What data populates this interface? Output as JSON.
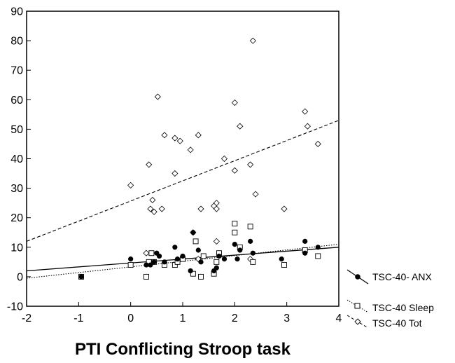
{
  "chart_data": {
    "type": "scatter",
    "title": "",
    "xlabel": "PTI Conflicting Stroop task",
    "ylabel": "",
    "xlim": [
      -2,
      4
    ],
    "ylim": [
      -10,
      90
    ],
    "xticks": [
      -2,
      -1,
      0,
      1,
      2,
      3,
      4
    ],
    "yticks": [
      -10,
      0,
      10,
      20,
      30,
      40,
      50,
      60,
      70,
      80,
      90
    ],
    "grid": false,
    "legend_position": "bottom-right, outside plot",
    "series": [
      {
        "name": "TSC-40- ANX",
        "marker": "filled-circle",
        "line_style": "solid",
        "fit": {
          "x": [
            -2,
            4
          ],
          "y": [
            2,
            10
          ]
        },
        "points": [
          [
            -0.95,
            0
          ],
          [
            0,
            6
          ],
          [
            0.3,
            4
          ],
          [
            0.38,
            4
          ],
          [
            0.45,
            5
          ],
          [
            0.5,
            8
          ],
          [
            0.55,
            7
          ],
          [
            0.65,
            5
          ],
          [
            0.85,
            10
          ],
          [
            0.9,
            6
          ],
          [
            1.0,
            7
          ],
          [
            1.15,
            2
          ],
          [
            1.2,
            15
          ],
          [
            1.3,
            9
          ],
          [
            1.35,
            5
          ],
          [
            1.6,
            2
          ],
          [
            1.65,
            3
          ],
          [
            1.7,
            7
          ],
          [
            1.8,
            6
          ],
          [
            2.0,
            11
          ],
          [
            2.05,
            6
          ],
          [
            2.1,
            9
          ],
          [
            2.3,
            12
          ],
          [
            2.35,
            8
          ],
          [
            2.9,
            6
          ],
          [
            3.35,
            12
          ],
          [
            3.35,
            8
          ],
          [
            3.6,
            10
          ]
        ]
      },
      {
        "name": "TSC-40 Sleep",
        "marker": "open-square",
        "line_style": "dotted",
        "fit": {
          "x": [
            -2,
            4
          ],
          "y": [
            -0.5,
            11
          ]
        },
        "points": [
          [
            -0.95,
            0
          ],
          [
            0,
            4
          ],
          [
            0.3,
            0
          ],
          [
            0.35,
            5
          ],
          [
            0.4,
            8
          ],
          [
            0.45,
            5
          ],
          [
            0.65,
            4
          ],
          [
            0.85,
            4
          ],
          [
            0.9,
            5
          ],
          [
            1.0,
            6
          ],
          [
            1.2,
            1
          ],
          [
            1.25,
            12
          ],
          [
            1.35,
            0
          ],
          [
            1.6,
            1
          ],
          [
            1.65,
            5
          ],
          [
            1.7,
            8
          ],
          [
            2.0,
            15
          ],
          [
            2.0,
            18
          ],
          [
            2.1,
            10
          ],
          [
            2.3,
            17
          ],
          [
            2.35,
            5
          ],
          [
            2.95,
            4
          ],
          [
            3.35,
            9
          ],
          [
            3.6,
            7
          ],
          [
            1.4,
            7
          ]
        ]
      },
      {
        "name": "TSC-40 Tot",
        "marker": "open-diamond",
        "line_style": "dashed",
        "fit": {
          "x": [
            -2,
            4
          ],
          "y": [
            12,
            53
          ]
        },
        "points": [
          [
            0,
            31
          ],
          [
            0.35,
            38
          ],
          [
            0.38,
            23
          ],
          [
            0.42,
            26
          ],
          [
            0.45,
            22
          ],
          [
            0.52,
            61
          ],
          [
            0.6,
            23
          ],
          [
            0.65,
            48
          ],
          [
            0.85,
            47
          ],
          [
            0.85,
            35
          ],
          [
            0.95,
            46
          ],
          [
            1.15,
            43
          ],
          [
            1.2,
            15
          ],
          [
            1.3,
            48
          ],
          [
            1.35,
            23
          ],
          [
            1.6,
            24
          ],
          [
            1.65,
            25
          ],
          [
            1.65,
            23
          ],
          [
            1.65,
            12
          ],
          [
            1.8,
            40
          ],
          [
            2.0,
            59
          ],
          [
            2.0,
            36
          ],
          [
            2.1,
            51
          ],
          [
            2.3,
            38
          ],
          [
            2.35,
            80
          ],
          [
            2.4,
            28
          ],
          [
            2.95,
            23
          ],
          [
            3.35,
            56
          ],
          [
            3.4,
            51
          ],
          [
            3.6,
            45
          ],
          [
            0.3,
            8
          ],
          [
            1.3,
            6
          ],
          [
            2.3,
            6
          ]
        ]
      }
    ]
  }
}
